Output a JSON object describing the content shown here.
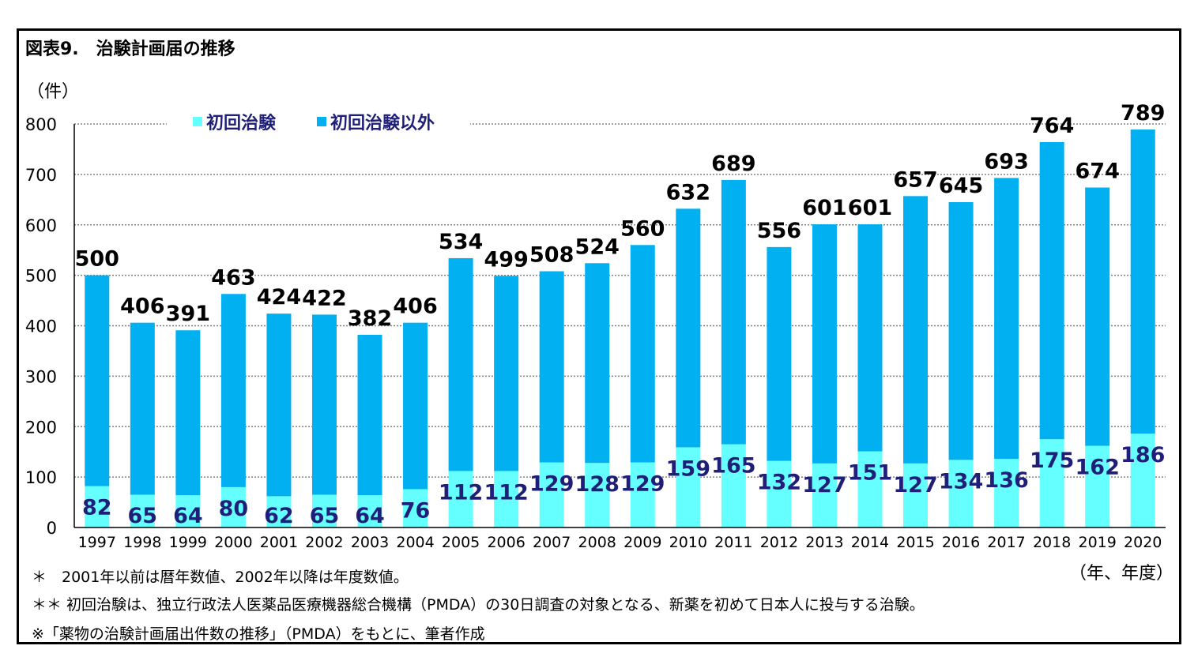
{
  "figure_title": "図表9.　治験計画届の推移",
  "y_unit": "（件）",
  "x_unit": "（年、年度）",
  "notes": [
    "＊　2001年以前は暦年数値、2002年以降は年度数値。",
    "＊＊ 初回治験は、独立行政法人医薬品医療機器総合機構（PMDA）の30日調査の対象となる、新薬を初めて日本人に投与する治験。",
    "※「薬物の治験計画届出件数の推移」（PMDA）をもとに、筆者作成"
  ],
  "colors": {
    "first_trial": "#66ffff",
    "other": "#00b0f0",
    "total_label": "#000000",
    "first_label": "#1f1f7a",
    "legend_text": "#1f1f7a"
  },
  "chart_data": {
    "type": "bar",
    "stacked": true,
    "title": "図表9.　治験計画届の推移",
    "xlabel": "（年、年度）",
    "ylabel": "（件）",
    "ylim": [
      0,
      800
    ],
    "yticks": [
      0,
      100,
      200,
      300,
      400,
      500,
      600,
      700,
      800
    ],
    "grid": true,
    "legend_position": "top-left",
    "categories": [
      "1997",
      "1998",
      "1999",
      "2000",
      "2001",
      "2002",
      "2003",
      "2004",
      "2005",
      "2006",
      "2007",
      "2008",
      "2009",
      "2010",
      "2011",
      "2012",
      "2013",
      "2014",
      "2015",
      "2016",
      "2017",
      "2018",
      "2019",
      "2020"
    ],
    "series": [
      {
        "name": "初回治験",
        "values": [
          82,
          65,
          64,
          80,
          62,
          65,
          64,
          76,
          112,
          112,
          129,
          128,
          129,
          159,
          165,
          132,
          127,
          151,
          127,
          134,
          136,
          175,
          162,
          186
        ]
      },
      {
        "name": "初回治験以外",
        "values": [
          418,
          341,
          327,
          383,
          362,
          357,
          318,
          330,
          422,
          387,
          379,
          396,
          431,
          473,
          524,
          424,
          474,
          450,
          530,
          511,
          557,
          589,
          512,
          603
        ]
      }
    ],
    "totals": [
      500,
      406,
      391,
      463,
      424,
      422,
      382,
      406,
      534,
      499,
      508,
      524,
      560,
      632,
      689,
      556,
      601,
      601,
      657,
      645,
      693,
      764,
      674,
      789
    ]
  }
}
